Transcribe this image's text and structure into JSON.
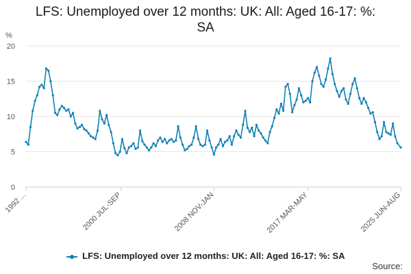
{
  "title_lines": [
    "LFS: Unemployed over 12 months: UK: All: Aged 16-17: %:",
    "SA"
  ],
  "source_label": "Source:",
  "colors": {
    "series": "#0f7fb5",
    "grid": "#e6e6e6",
    "axis": "#cfcfcf"
  },
  "chart_data": {
    "type": "line",
    "title": "LFS: Unemployed over 12 months: UK: All: Aged 16-17: %: SA",
    "ylabel": "%",
    "xlabel": "",
    "ylim": [
      0,
      20
    ],
    "yticks": [
      0,
      5,
      10,
      15,
      20
    ],
    "xlim": [
      1992.0,
      2025.5
    ],
    "xticks": [
      {
        "label": "1992 ...",
        "x": 1992.0
      },
      {
        "label": "2000 JUL-SEP",
        "x": 2000.5
      },
      {
        "label": "2008 NOV-JAN",
        "x": 2008.8
      },
      {
        "label": "2017 MAR-MAY",
        "x": 2017.2
      },
      {
        "label": "2025 JUN-AUG",
        "x": 2025.5
      }
    ],
    "grid": true,
    "legend_position": "bottom",
    "series": [
      {
        "name": "LFS: Unemployed over 12 months: UK: All: Aged 16-17: %: SA",
        "points": [
          [
            1992.0,
            6.4
          ],
          [
            1992.2,
            6.0
          ],
          [
            1992.4,
            8.5
          ],
          [
            1992.6,
            10.8
          ],
          [
            1992.8,
            12.2
          ],
          [
            1993.0,
            13.0
          ],
          [
            1993.2,
            14.2
          ],
          [
            1993.4,
            14.5
          ],
          [
            1993.6,
            14.0
          ],
          [
            1993.8,
            16.8
          ],
          [
            1994.0,
            16.5
          ],
          [
            1994.2,
            15.0
          ],
          [
            1994.4,
            13.0
          ],
          [
            1994.6,
            10.5
          ],
          [
            1994.8,
            10.2
          ],
          [
            1995.0,
            11.0
          ],
          [
            1995.2,
            11.5
          ],
          [
            1995.4,
            11.2
          ],
          [
            1995.6,
            10.8
          ],
          [
            1995.8,
            11.0
          ],
          [
            1996.0,
            10.0
          ],
          [
            1996.2,
            10.5
          ],
          [
            1996.4,
            9.0
          ],
          [
            1996.6,
            8.3
          ],
          [
            1996.8,
            8.5
          ],
          [
            1997.0,
            8.8
          ],
          [
            1997.2,
            8.2
          ],
          [
            1997.4,
            8.0
          ],
          [
            1997.6,
            7.6
          ],
          [
            1997.8,
            7.2
          ],
          [
            1998.0,
            7.0
          ],
          [
            1998.2,
            6.8
          ],
          [
            1998.4,
            8.0
          ],
          [
            1998.6,
            10.8
          ],
          [
            1998.8,
            9.6
          ],
          [
            1999.0,
            9.0
          ],
          [
            1999.2,
            10.2
          ],
          [
            1999.4,
            8.8
          ],
          [
            1999.6,
            7.8
          ],
          [
            1999.8,
            6.2
          ],
          [
            2000.0,
            4.8
          ],
          [
            2000.2,
            4.5
          ],
          [
            2000.4,
            5.0
          ],
          [
            2000.6,
            6.8
          ],
          [
            2000.8,
            5.5
          ],
          [
            2001.0,
            4.8
          ],
          [
            2001.2,
            5.6
          ],
          [
            2001.4,
            5.8
          ],
          [
            2001.6,
            6.2
          ],
          [
            2001.8,
            5.4
          ],
          [
            2002.0,
            5.6
          ],
          [
            2002.2,
            8.0
          ],
          [
            2002.4,
            6.5
          ],
          [
            2002.6,
            6.0
          ],
          [
            2002.8,
            5.6
          ],
          [
            2003.0,
            5.2
          ],
          [
            2003.2,
            5.6
          ],
          [
            2003.4,
            6.2
          ],
          [
            2003.6,
            5.8
          ],
          [
            2003.8,
            6.6
          ],
          [
            2004.0,
            7.0
          ],
          [
            2004.2,
            6.4
          ],
          [
            2004.4,
            6.8
          ],
          [
            2004.6,
            6.2
          ],
          [
            2004.8,
            6.6
          ],
          [
            2005.0,
            6.8
          ],
          [
            2005.2,
            6.4
          ],
          [
            2005.4,
            6.6
          ],
          [
            2005.6,
            8.6
          ],
          [
            2005.8,
            7.0
          ],
          [
            2006.0,
            6.0
          ],
          [
            2006.2,
            5.2
          ],
          [
            2006.4,
            5.4
          ],
          [
            2006.6,
            5.8
          ],
          [
            2006.8,
            6.0
          ],
          [
            2007.0,
            7.0
          ],
          [
            2007.2,
            8.6
          ],
          [
            2007.4,
            6.8
          ],
          [
            2007.6,
            6.0
          ],
          [
            2007.8,
            5.8
          ],
          [
            2008.0,
            6.0
          ],
          [
            2008.2,
            8.0
          ],
          [
            2008.4,
            6.6
          ],
          [
            2008.6,
            5.6
          ],
          [
            2008.8,
            4.6
          ],
          [
            2009.0,
            5.6
          ],
          [
            2009.2,
            6.0
          ],
          [
            2009.4,
            6.8
          ],
          [
            2009.6,
            5.8
          ],
          [
            2009.8,
            6.4
          ],
          [
            2010.0,
            6.6
          ],
          [
            2010.2,
            7.2
          ],
          [
            2010.4,
            6.0
          ],
          [
            2010.6,
            7.2
          ],
          [
            2010.8,
            8.0
          ],
          [
            2011.0,
            7.4
          ],
          [
            2011.2,
            7.0
          ],
          [
            2011.4,
            8.8
          ],
          [
            2011.6,
            10.8
          ],
          [
            2011.8,
            8.4
          ],
          [
            2012.0,
            7.8
          ],
          [
            2012.2,
            8.4
          ],
          [
            2012.4,
            7.2
          ],
          [
            2012.6,
            8.8
          ],
          [
            2012.8,
            8.0
          ],
          [
            2013.0,
            7.6
          ],
          [
            2013.2,
            7.0
          ],
          [
            2013.4,
            6.6
          ],
          [
            2013.6,
            6.2
          ],
          [
            2013.8,
            7.8
          ],
          [
            2014.0,
            8.6
          ],
          [
            2014.2,
            9.8
          ],
          [
            2014.4,
            11.0
          ],
          [
            2014.6,
            10.4
          ],
          [
            2014.8,
            11.8
          ],
          [
            2015.0,
            10.8
          ],
          [
            2015.2,
            14.2
          ],
          [
            2015.4,
            14.6
          ],
          [
            2015.6,
            13.2
          ],
          [
            2015.8,
            10.6
          ],
          [
            2016.0,
            11.6
          ],
          [
            2016.2,
            12.4
          ],
          [
            2016.4,
            14.0
          ],
          [
            2016.6,
            13.0
          ],
          [
            2016.8,
            12.0
          ],
          [
            2017.0,
            12.2
          ],
          [
            2017.2,
            12.6
          ],
          [
            2017.4,
            12.0
          ],
          [
            2017.6,
            15.0
          ],
          [
            2017.8,
            16.2
          ],
          [
            2018.0,
            17.0
          ],
          [
            2018.2,
            15.8
          ],
          [
            2018.4,
            14.6
          ],
          [
            2018.6,
            14.2
          ],
          [
            2018.8,
            15.2
          ],
          [
            2019.0,
            16.8
          ],
          [
            2019.2,
            18.2
          ],
          [
            2019.4,
            16.0
          ],
          [
            2019.6,
            14.6
          ],
          [
            2019.8,
            13.6
          ],
          [
            2020.0,
            12.8
          ],
          [
            2020.2,
            13.6
          ],
          [
            2020.4,
            14.0
          ],
          [
            2020.6,
            12.4
          ],
          [
            2020.8,
            11.8
          ],
          [
            2021.0,
            13.2
          ],
          [
            2021.2,
            14.6
          ],
          [
            2021.4,
            15.4
          ],
          [
            2021.6,
            14.0
          ],
          [
            2021.8,
            12.6
          ],
          [
            2022.0,
            11.8
          ],
          [
            2022.2,
            12.6
          ],
          [
            2022.4,
            12.0
          ],
          [
            2022.6,
            11.2
          ],
          [
            2022.8,
            10.4
          ],
          [
            2023.0,
            10.6
          ],
          [
            2023.2,
            9.2
          ],
          [
            2023.4,
            7.8
          ],
          [
            2023.6,
            6.8
          ],
          [
            2023.8,
            7.2
          ],
          [
            2024.0,
            9.2
          ],
          [
            2024.2,
            7.8
          ],
          [
            2024.4,
            7.6
          ],
          [
            2024.6,
            7.4
          ],
          [
            2024.8,
            9.0
          ],
          [
            2025.0,
            7.2
          ],
          [
            2025.2,
            6.2
          ],
          [
            2025.5,
            5.6
          ]
        ]
      }
    ]
  }
}
